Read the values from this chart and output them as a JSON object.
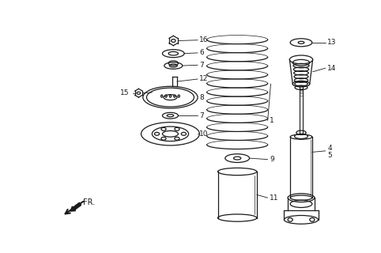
{
  "background_color": "#ffffff",
  "line_color": "#1a1a1a",
  "fig_width": 4.82,
  "fig_height": 3.2,
  "dpi": 100,
  "fr_arrow": {
    "text": "FR."
  }
}
